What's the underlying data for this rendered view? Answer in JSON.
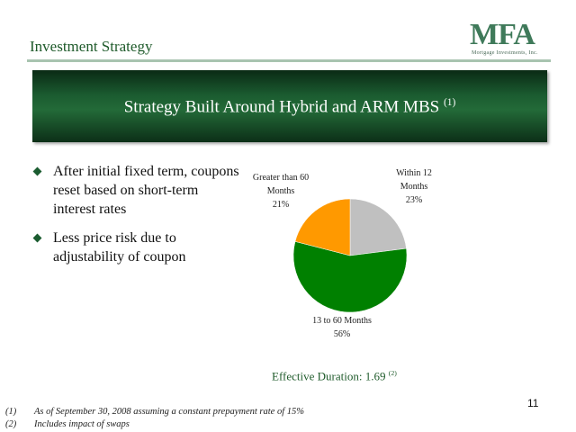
{
  "header": {
    "title": "Investment Strategy",
    "logo_mark": "MFA",
    "logo_sub": "Mortgage Investments, Inc."
  },
  "banner": {
    "title": "Strategy Built Around Hybrid and ARM MBS",
    "footnote_ref": "(1)"
  },
  "bullets": [
    "After initial fixed term, coupons reset based on short-term interest rates",
    "Less price risk due to adjustability of coupon"
  ],
  "chart_data": {
    "type": "pie",
    "slices": [
      {
        "label_lines": [
          "Within 12",
          "Months"
        ],
        "value": 23,
        "value_label": "23%",
        "color": "#c0c0c0"
      },
      {
        "label_lines": [
          "13 to 60 Months"
        ],
        "value": 56,
        "value_label": "56%",
        "color": "#008000"
      },
      {
        "label_lines": [
          "Greater than 60",
          "Months"
        ],
        "value": 21,
        "value_label": "21%",
        "color": "#ff9900"
      }
    ]
  },
  "duration": {
    "text": "Effective Duration: 1.69",
    "footnote_ref": "(2)"
  },
  "page_number": "11",
  "footnotes": [
    {
      "num": "(1)",
      "text": "As of September 30, 2008 assuming a constant prepayment rate of 15%"
    },
    {
      "num": "(2)",
      "text": "Includes impact of swaps"
    }
  ],
  "colors": {
    "brand_green": "#1e5a2a",
    "banner_dark": "#0a2a14",
    "rule": "#a8c4b0"
  }
}
